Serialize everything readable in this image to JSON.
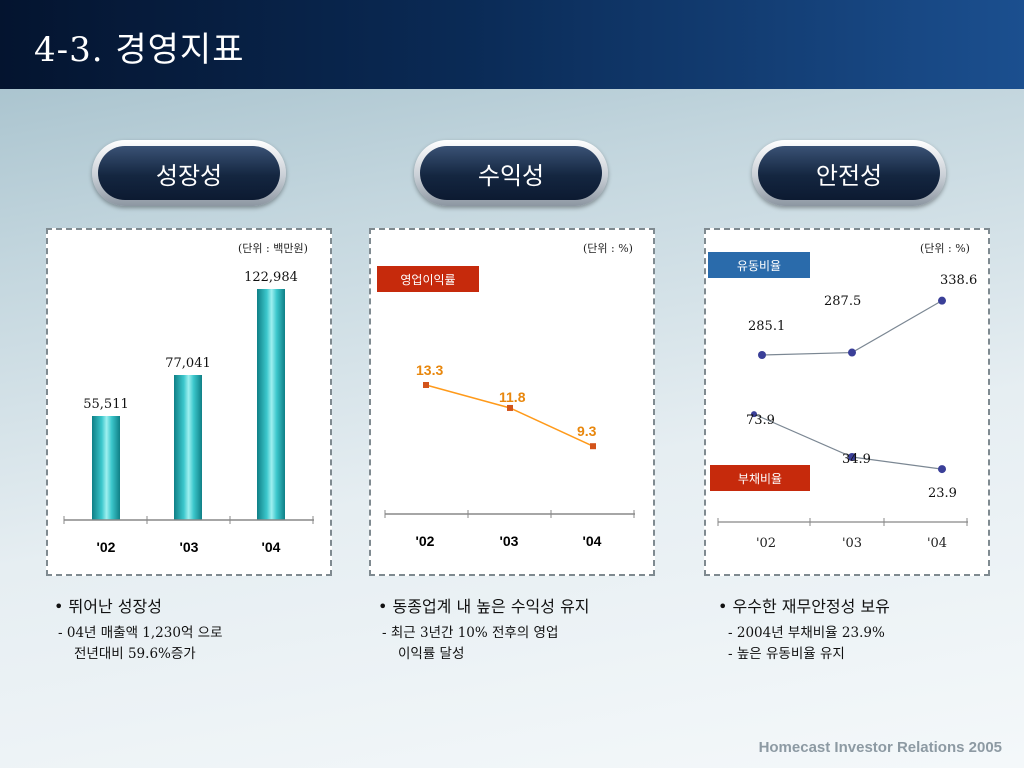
{
  "header": {
    "title": "4-3. 경영지표"
  },
  "pills": [
    "성장성",
    "수익성",
    "안전성"
  ],
  "growth": {
    "unit": "(단위 : 백만원)",
    "chart_data": {
      "type": "bar",
      "categories": [
        "'02",
        "'03",
        "'04"
      ],
      "values": [
        55511,
        77041,
        122984
      ],
      "value_labels": [
        "55,511",
        "77,041",
        "122,984"
      ],
      "ylim": [
        0,
        122984
      ]
    }
  },
  "profit": {
    "unit": "(단위 : %)",
    "tag": "영업이익률",
    "chart_data": {
      "type": "line",
      "categories": [
        "'02",
        "'03",
        "'04"
      ],
      "series": [
        {
          "name": "영업이익률",
          "values": [
            13.3,
            11.8,
            9.3
          ]
        }
      ],
      "value_labels": [
        "13.3",
        "11.8",
        "9.3"
      ]
    },
    "colors": {
      "line": "#ff9a1a",
      "label": "#e8870d",
      "tag": "#c62a0c"
    }
  },
  "safety": {
    "unit": "(단위 : %)",
    "tag_current": "유동비율",
    "tag_debt": "부채비율",
    "chart_data": {
      "type": "line",
      "categories": [
        "'02",
        "'03",
        "'04"
      ],
      "series": [
        {
          "name": "유동비율",
          "values": [
            285.1,
            287.5,
            338.6
          ]
        },
        {
          "name": "부채비율",
          "values": [
            73.9,
            34.9,
            23.9
          ]
        }
      ],
      "value_labels": {
        "current": [
          "285.1",
          "287.5",
          "338.6"
        ],
        "debt": [
          "73.9",
          "34.9",
          "23.9"
        ]
      }
    },
    "colors": {
      "tag_current": "#2a6bab",
      "tag_debt": "#c62a0c"
    }
  },
  "bullets": {
    "growth": {
      "head": "• 뛰어난 성장성",
      "line1": "- 04년 매출액 1,230억 으로",
      "line2": "전년대비 59.6%증가"
    },
    "profit": {
      "head": "• 동종업계 내 높은 수익성 유지",
      "line1": "- 최근 3년간 10% 전후의 영업",
      "line2": "이익률 달성"
    },
    "safety": {
      "head": "• 우수한 재무안정성 보유",
      "line1": "- 2004년 부채비율 23.9%",
      "line2": "- 높은 유동비율 유지"
    }
  },
  "footer": "Homecast Investor Relations 2005"
}
